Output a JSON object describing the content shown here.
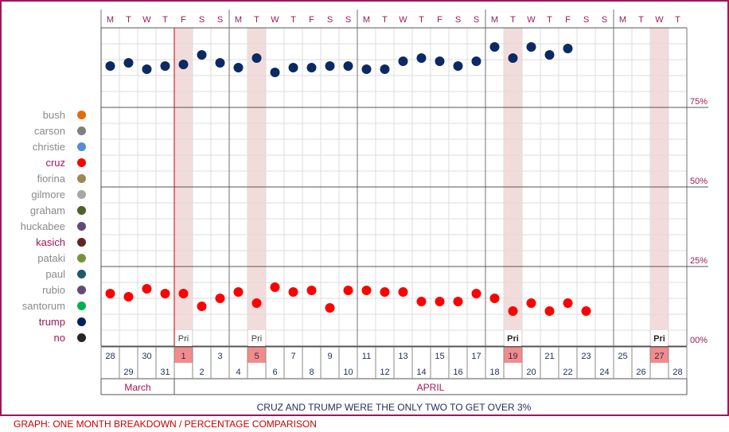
{
  "chart_data": {
    "type": "scatter",
    "dow_letters": [
      "M",
      "T",
      "W",
      "T",
      "F",
      "S",
      "S",
      "M",
      "T",
      "W",
      "T",
      "F",
      "S",
      "S",
      "M",
      "T",
      "W",
      "T",
      "F",
      "S",
      "S",
      "M",
      "T",
      "W",
      "T",
      "F",
      "S",
      "S",
      "M",
      "T",
      "W",
      "T"
    ],
    "dates": [
      28,
      29,
      30,
      31,
      1,
      2,
      3,
      4,
      5,
      6,
      7,
      8,
      9,
      10,
      11,
      12,
      13,
      14,
      15,
      16,
      17,
      18,
      19,
      20,
      21,
      22,
      23,
      24,
      25,
      26,
      27,
      28
    ],
    "months": [
      {
        "label": "March",
        "from": 0,
        "to": 3
      },
      {
        "label": "APRIL",
        "from": 4,
        "to": 31
      }
    ],
    "primary_day_indices": [
      4,
      8,
      22,
      30
    ],
    "primary_marker_indices": [
      4,
      8,
      22,
      30
    ],
    "primary_label": "Pri",
    "y_tick_labels": [
      "75%",
      "50%",
      "25%",
      "00%"
    ],
    "ylim": [
      0,
      100
    ],
    "series": [
      {
        "name": "trump",
        "color": "#0b2a63",
        "points": [
          [
            0,
            88
          ],
          [
            1,
            89
          ],
          [
            2,
            87
          ],
          [
            3,
            88
          ],
          [
            4,
            88.5
          ],
          [
            5,
            91.5
          ],
          [
            6,
            89
          ],
          [
            7,
            87.5
          ],
          [
            8,
            90.5
          ],
          [
            9,
            86
          ],
          [
            10,
            87.5
          ],
          [
            11,
            87.5
          ],
          [
            12,
            88
          ],
          [
            13,
            88
          ],
          [
            14,
            87
          ],
          [
            15,
            87
          ],
          [
            16,
            89.5
          ],
          [
            17,
            90.5
          ],
          [
            18,
            89.5
          ],
          [
            19,
            88
          ],
          [
            20,
            89.5
          ],
          [
            21,
            94
          ],
          [
            22,
            90.5
          ],
          [
            23,
            94
          ],
          [
            24,
            91.5
          ],
          [
            25,
            93.5
          ]
        ]
      },
      {
        "name": "cruz",
        "color": "#ff0000",
        "points": [
          [
            0,
            16.5
          ],
          [
            1,
            15.5
          ],
          [
            2,
            18
          ],
          [
            3,
            16.5
          ],
          [
            4,
            16.5
          ],
          [
            5,
            12.5
          ],
          [
            6,
            15
          ],
          [
            7,
            17
          ],
          [
            8,
            13.5
          ],
          [
            9,
            18.5
          ],
          [
            10,
            17
          ],
          [
            11,
            17.5
          ],
          [
            12,
            12
          ],
          [
            13,
            17.5
          ],
          [
            14,
            17.5
          ],
          [
            15,
            17
          ],
          [
            16,
            17
          ],
          [
            17,
            14
          ],
          [
            18,
            14
          ],
          [
            19,
            14
          ],
          [
            20,
            16.5
          ],
          [
            21,
            15
          ],
          [
            22,
            11
          ],
          [
            23,
            13.5
          ],
          [
            24,
            11
          ],
          [
            25,
            13.5
          ],
          [
            26,
            11
          ]
        ]
      }
    ],
    "legend": [
      {
        "name": "bush",
        "color": "#e36c09",
        "highlight": false
      },
      {
        "name": "carson",
        "color": "#7f7f7f",
        "highlight": false
      },
      {
        "name": "christie",
        "color": "#558ed5",
        "highlight": false
      },
      {
        "name": "cruz",
        "color": "#ff0000",
        "highlight": true
      },
      {
        "name": "fiorina",
        "color": "#948a54",
        "highlight": false
      },
      {
        "name": "gilmore",
        "color": "#a6a6a6",
        "highlight": false
      },
      {
        "name": "graham",
        "color": "#4f6228",
        "highlight": false
      },
      {
        "name": "huckabee",
        "color": "#604a7b",
        "highlight": false
      },
      {
        "name": "kasich",
        "color": "#632523",
        "highlight": true
      },
      {
        "name": "pataki",
        "color": "#77933c",
        "highlight": false
      },
      {
        "name": "paul",
        "color": "#215968",
        "highlight": false
      },
      {
        "name": "rubio",
        "color": "#604a7b",
        "highlight": false
      },
      {
        "name": "santorum",
        "color": "#00b050",
        "highlight": false
      },
      {
        "name": "trump",
        "color": "#002060",
        "highlight": true
      },
      {
        "name": "no",
        "color": "#262626",
        "highlight": true
      }
    ]
  },
  "caption": "CRUZ AND TRUMP WERE THE ONLY TWO TO GET OVER 3%",
  "footer": "GRAPH: ONE MONTH BREAKDOWN / PERCENTAGE COMPARISON"
}
